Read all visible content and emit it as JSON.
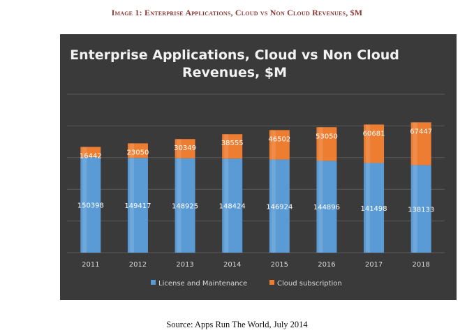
{
  "figure_caption": "Image 1: Enterprise Applications, Cloud vs Non Cloud Revenues, $M",
  "source_note": "Source: Apps Run The World, July 2014",
  "chart_data": {
    "type": "bar",
    "stacked": true,
    "title": "Enterprise Applications, Cloud vs Non Cloud Revenues, $M",
    "title_lines": [
      "Enterprise Applications, Cloud vs Non Cloud",
      "Revenues, $M"
    ],
    "categories": [
      "2011",
      "2012",
      "2013",
      "2014",
      "2015",
      "2016",
      "2017",
      "2018"
    ],
    "series": [
      {
        "name": "License and Maintenance",
        "color": "#5b9bd5",
        "values": [
          150398,
          149417,
          148925,
          148424,
          146924,
          144896,
          141498,
          138133
        ]
      },
      {
        "name": "Cloud subscription",
        "color": "#ed7d31",
        "values": [
          16442,
          23050,
          30349,
          38555,
          46502,
          53050,
          60681,
          67447
        ]
      }
    ],
    "ylim": [
      0,
      250000
    ],
    "yticks": [
      "0",
      "50000",
      "100000",
      "150000",
      "200000",
      "250000"
    ],
    "xlabel": "",
    "ylabel": "",
    "grid": true,
    "legend_position": "bottom",
    "background_color": "#3a3a3a"
  }
}
